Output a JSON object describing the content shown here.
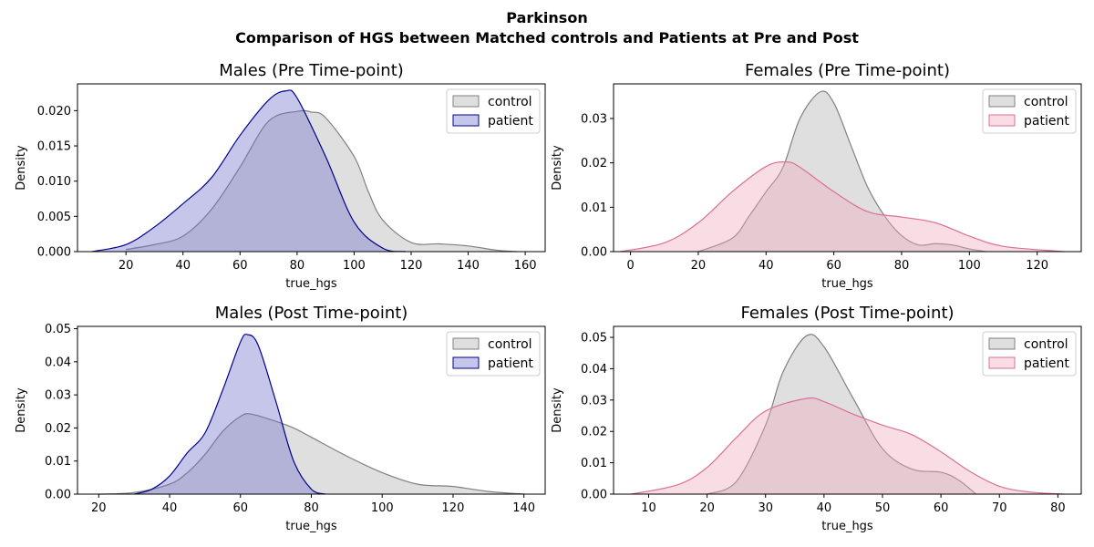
{
  "figure": {
    "suptitle_line1": "Parkinson",
    "suptitle_line2": "Comparison of HGS between Matched controls and Patients at Pre and Post"
  },
  "colors": {
    "control_line": "#808080",
    "control_fill": "#b0b0b0",
    "patient_male_line": "#00008b",
    "patient_male_fill": "#7070cc",
    "patient_female_line": "#db7093",
    "patient_female_fill": "#eeaabf"
  },
  "chart_data": [
    {
      "type": "area",
      "title": "Males (Pre Time-point)",
      "xlabel": "true_hgs",
      "ylabel": "Density",
      "xlim": [
        3,
        167
      ],
      "ylim": [
        0,
        0.0238
      ],
      "xticks": [
        20,
        40,
        60,
        80,
        100,
        120,
        140,
        160
      ],
      "yticks": [
        0.0,
        0.005,
        0.01,
        0.015,
        0.02
      ],
      "ytick_labels": [
        "0.000",
        "0.005",
        "0.010",
        "0.015",
        "0.020"
      ],
      "legend": "top-right",
      "patient_style": "male",
      "series": [
        {
          "name": "control",
          "x": [
            20,
            30,
            40,
            50,
            60,
            70,
            80,
            85,
            90,
            100,
            105,
            110,
            120,
            130,
            140,
            150,
            157
          ],
          "y": [
            0.0003,
            0.001,
            0.0022,
            0.006,
            0.012,
            0.0185,
            0.0199,
            0.0198,
            0.019,
            0.0135,
            0.0085,
            0.0045,
            0.0013,
            0.0011,
            0.0008,
            0.0002,
            0.0
          ]
        },
        {
          "name": "patient",
          "x": [
            8,
            20,
            30,
            40,
            50,
            60,
            70,
            76,
            80,
            90,
            100,
            110,
            118
          ],
          "y": [
            0.0,
            0.001,
            0.0035,
            0.0068,
            0.0105,
            0.0165,
            0.0215,
            0.0228,
            0.0218,
            0.0135,
            0.0042,
            0.0005,
            0.0
          ]
        }
      ]
    },
    {
      "type": "area",
      "title": "Females (Pre Time-point)",
      "xlabel": "true_hgs",
      "ylabel": "Density",
      "xlim": [
        -5,
        133
      ],
      "ylim": [
        0,
        0.0378
      ],
      "xticks": [
        0,
        20,
        40,
        60,
        80,
        100,
        120
      ],
      "yticks": [
        0.0,
        0.01,
        0.02,
        0.03
      ],
      "ytick_labels": [
        "0.00",
        "0.01",
        "0.02",
        "0.03"
      ],
      "legend": "top-right",
      "patient_style": "female",
      "series": [
        {
          "name": "control",
          "x": [
            20,
            30,
            35,
            40,
            45,
            50,
            56,
            60,
            65,
            70,
            75,
            80,
            85,
            90,
            95,
            100,
            105
          ],
          "y": [
            0.0,
            0.003,
            0.008,
            0.0135,
            0.019,
            0.03,
            0.036,
            0.0335,
            0.024,
            0.0145,
            0.008,
            0.0036,
            0.0015,
            0.0018,
            0.0015,
            0.0006,
            0.0
          ]
        },
        {
          "name": "patient",
          "x": [
            -3,
            10,
            20,
            30,
            40,
            46,
            50,
            60,
            70,
            80,
            90,
            100,
            110,
            128
          ],
          "y": [
            0.0,
            0.002,
            0.0065,
            0.0135,
            0.0192,
            0.0202,
            0.019,
            0.0135,
            0.009,
            0.0078,
            0.0065,
            0.0035,
            0.0012,
            0.0
          ]
        }
      ]
    },
    {
      "type": "area",
      "title": "Males (Post Time-point)",
      "xlabel": "true_hgs",
      "ylabel": "Density",
      "xlim": [
        14,
        146
      ],
      "ylim": [
        0,
        0.0507
      ],
      "xticks": [
        20,
        40,
        60,
        80,
        100,
        120,
        140
      ],
      "yticks": [
        0.0,
        0.01,
        0.02,
        0.03,
        0.04,
        0.05
      ],
      "ytick_labels": [
        "0.00",
        "0.01",
        "0.02",
        "0.03",
        "0.04",
        "0.05"
      ],
      "legend": "top-right",
      "patient_style": "male",
      "series": [
        {
          "name": "control",
          "x": [
            20,
            30,
            40,
            45,
            50,
            55,
            60,
            63,
            70,
            75,
            80,
            90,
            100,
            110,
            120,
            130,
            140
          ],
          "y": [
            0.0,
            0.0005,
            0.003,
            0.0065,
            0.012,
            0.019,
            0.0235,
            0.0242,
            0.022,
            0.02,
            0.0172,
            0.0115,
            0.0065,
            0.003,
            0.0023,
            0.0008,
            0.0
          ]
        },
        {
          "name": "patient",
          "x": [
            30,
            35,
            40,
            45,
            50,
            55,
            60,
            62,
            65,
            70,
            75,
            80,
            84
          ],
          "y": [
            0.0,
            0.0015,
            0.0055,
            0.0125,
            0.0185,
            0.0315,
            0.046,
            0.0482,
            0.045,
            0.028,
            0.01,
            0.0015,
            0.0
          ]
        }
      ]
    },
    {
      "type": "area",
      "title": "Females (Post Time-point)",
      "xlabel": "true_hgs",
      "ylabel": "Density",
      "xlim": [
        4,
        84
      ],
      "ylim": [
        0,
        0.0535
      ],
      "xticks": [
        10,
        20,
        30,
        40,
        50,
        60,
        70,
        80
      ],
      "yticks": [
        0.0,
        0.01,
        0.02,
        0.03,
        0.04,
        0.05
      ],
      "ytick_labels": [
        "0.00",
        "0.01",
        "0.02",
        "0.03",
        "0.04",
        "0.05"
      ],
      "legend": "top-right",
      "patient_style": "female",
      "series": [
        {
          "name": "control",
          "x": [
            20,
            25,
            30,
            33,
            37,
            40,
            45,
            50,
            55,
            60,
            63,
            66
          ],
          "y": [
            0.0,
            0.004,
            0.022,
            0.039,
            0.0505,
            0.047,
            0.0305,
            0.0145,
            0.008,
            0.007,
            0.0045,
            0.0
          ]
        },
        {
          "name": "patient",
          "x": [
            7,
            15,
            20,
            25,
            30,
            37,
            40,
            45,
            50,
            55,
            60,
            65,
            70,
            75,
            81
          ],
          "y": [
            0.0,
            0.003,
            0.0085,
            0.018,
            0.0265,
            0.0305,
            0.0295,
            0.0255,
            0.022,
            0.019,
            0.0135,
            0.0072,
            0.0025,
            0.0007,
            0.0
          ]
        }
      ]
    }
  ]
}
